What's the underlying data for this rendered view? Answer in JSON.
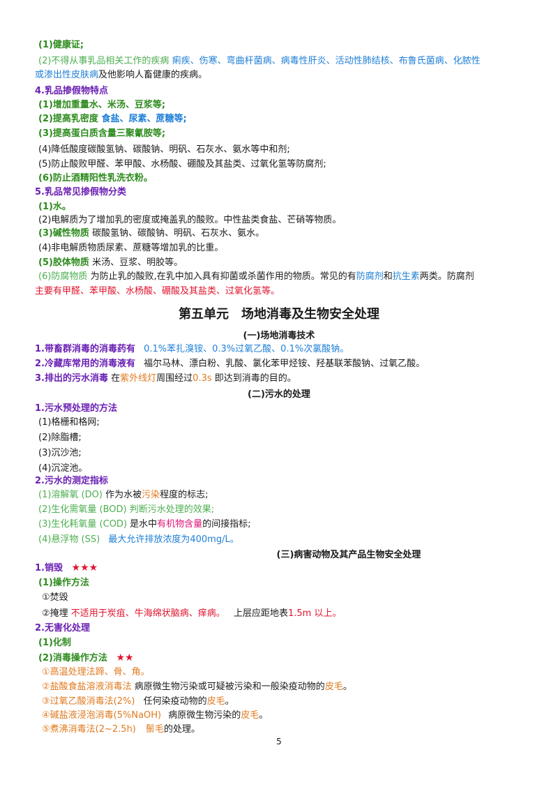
{
  "s1": {
    "l1": "(1)健康证;",
    "l2a": "(2)不得从事乳品相关工作的疾病",
    "l2b": "痢疾、伤寒、弯曲杆菌病、病毒性肝炎、活动性肺结核、布鲁氏菌病、化脓性",
    "l2c": "或渗出性皮肤病",
    "l2d": "及他影响人畜健康的疾病。"
  },
  "s4": {
    "title": "4.乳品掺假物特点",
    "i1": "(1)增加重量水、米汤、豆浆等;",
    "i2a": "(2)提高乳密度",
    "i2b": "食盐、尿素、蔗糖等;",
    "i3": "(3)提高蛋白质含量三聚氰胺等;",
    "i4": "(4)降低酸度碳酸氢钠、碳酸钠、明矾、石灰水、氨水等中和剂;",
    "i5": "(5)防止酸败甲醛、苯甲酸、水杨酸、硼酸及其盐类、过氧化氢等防腐剂;",
    "i6": "(6)防止酒精阳性乳洗衣粉。"
  },
  "s5": {
    "title": "5.乳品常见掺假物分类",
    "i1": "(1)水。",
    "i2": "(2)电解质为了增加乳的密度或掩盖乳的酸败。中性盐类食盐、芒硝等物质。",
    "i3a": "(3)碱性物质",
    "i3b": "碳酸氢钠、碳酸钠、明矾、石灰水、氨水。",
    "i4": "(4)非电解质物质尿素、蔗糖等增加乳的比重。",
    "i5a": "(5)胶体物质",
    "i5b": "米汤、豆浆、明胶等。",
    "i6a": "(6)防腐物质",
    "i6b": "为防止乳的酸败,在乳中加入具有抑菌或杀菌作用的物质。常见的有",
    "i6c": "防腐剂",
    "i6d": "和",
    "i6e": "抗生素",
    "i6f": "两类。防腐剂",
    "i6g": "主要有甲醛、苯甲酸、水杨酸、硼酸及其盐类、过氧化氢等。"
  },
  "unit5": {
    "title": "第五单元　场地消毒及生物安全处理",
    "sub1": "(一)场地消毒技术",
    "a1a": "1.带畜群消毒的消毒药有",
    "a1b": "0.1%苯扎溴铵、0.3%过氧乙酸、0.1%次氯酸钠。",
    "a2a": "2.冷藏库常用的消毒液有",
    "a2b": "福尔马林、漂白粉、乳酸、氯化苯甲烃铵、羟基联苯酸钠、过氧乙酸。",
    "a3a": "3.排出的污水消毒",
    "a3b": "在",
    "a3c": "紫外线灯",
    "a3d": "周围经过",
    "a3e": "0.3s",
    "a3f": "即达到消毒的目的。",
    "sub2": "(二)污水的处理",
    "b1": "1.污水预处理的方法",
    "b1i": [
      "(1)格栅和格网;",
      "(2)除脂槽;",
      "(3)沉沙池;",
      "(4)沉淀池。"
    ],
    "b2": "2.污水的测定指标",
    "c1a": "(1)溶解氧 (DO)",
    "c1b": "作为水被",
    "c1c": "污染",
    "c1d": "程度的标志;",
    "c2": "(2)生化需氧量 (BOD) 判断污水处理的效果;",
    "c3a": "(3)生化耗氧量 (COD)",
    "c3b": "是水中",
    "c3c": "有机物含量",
    "c3d": "的间接指标;",
    "c4a": "(4)悬浮物 (SS)",
    "c4b": "最大允许排放浓度为400mg/L。",
    "sub3": "(三)病害动物及其产品生物安全处理",
    "d1": "1.销毁",
    "stars3": "★★★",
    "d1s": "(1)操作方法",
    "d1a": "①焚毁",
    "d1b1": "②掩埋",
    "d1b2": "不适用于炭疽、牛海绵状脑病、痒病。",
    "d1b3": "上层应距地表",
    "d1b4": "1.5m 以上。",
    "d2": "2.无害化处理",
    "d2a": "(1)化制",
    "d2b": "(2)消毒操作方法",
    "stars2": "★★",
    "e1": "①高温处理法蹄、骨、角。",
    "e2a": "②盐酸食盐溶液消毒法",
    "e2b": "病原微生物污染或可疑被污染和一般染疫动物的",
    "e2c": "皮毛",
    "e2d": "。",
    "e3a": "③过氧乙酸消毒法(2%)",
    "e3b": "任何染疫动物的",
    "e3c": "皮毛",
    "e3d": "。",
    "e4a": "④碱盐液浸泡消毒(5%NaOH)",
    "e4b": "病原微生物污染的",
    "e4c": "皮毛",
    "e4d": "。",
    "e5a": "⑤煮沸消毒法(2~2.5h)",
    "e5b": "鬃毛",
    "e5c": "的处理。"
  },
  "page_number": "5"
}
